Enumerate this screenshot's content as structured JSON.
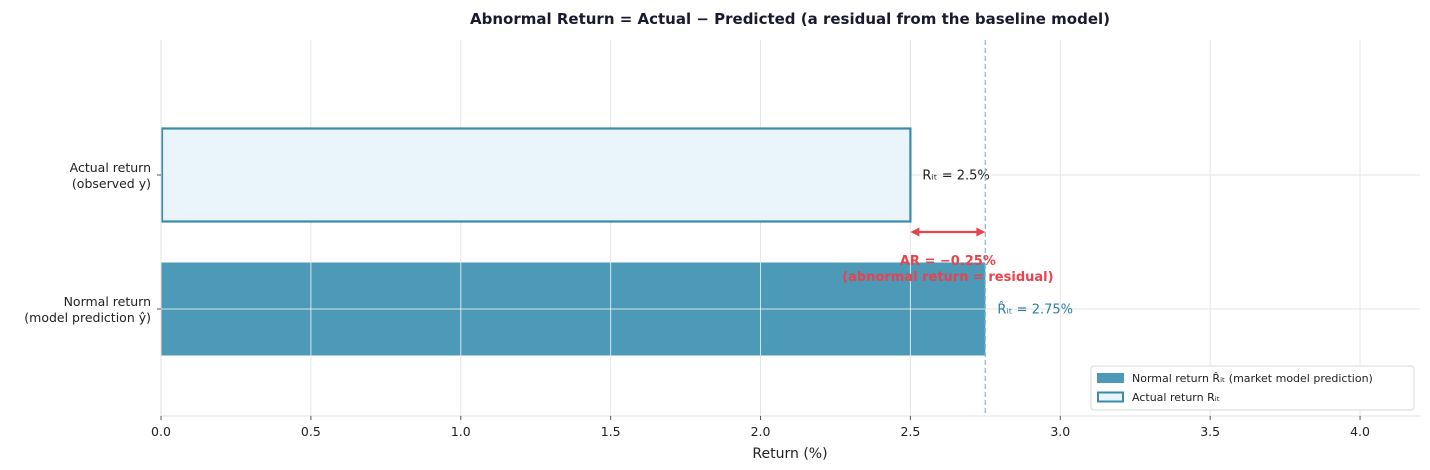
{
  "chart_data": {
    "type": "bar",
    "orientation": "horizontal",
    "title": "Abnormal Return = Actual − Predicted  (a residual from the baseline model)",
    "xlabel": "Return (%)",
    "ylabel": "",
    "xlim": [
      0,
      4.2
    ],
    "xticks": [
      0.0,
      0.5,
      1.0,
      1.5,
      2.0,
      2.5,
      3.0,
      3.5,
      4.0
    ],
    "grid": true,
    "categories": [
      {
        "line1": "Actual return",
        "line2": "(observed y)"
      },
      {
        "line1": "Normal return",
        "line2": "(model prediction ŷ)"
      }
    ],
    "series": [
      {
        "name": "Actual return Rᵢₜ",
        "category_index": 0,
        "value": 2.5,
        "label": "Rᵢₜ = 2.5%",
        "style": "outline",
        "color": "#3a8aab",
        "fill": "#eaf4fb"
      },
      {
        "name": "Normal return R̂ᵢₜ  (market model prediction)",
        "category_index": 1,
        "value": 2.75,
        "label": "R̂ᵢₜ = 2.75%",
        "style": "filled",
        "color": "#4d99b8"
      }
    ],
    "reference_line": {
      "x": 2.75,
      "color": "#8cc0d8",
      "style": "dashed"
    },
    "annotation": {
      "from": 2.5,
      "to": 2.75,
      "line1": "AR = −0.25%",
      "line2": "(abnormal return = residual)",
      "color": "#e8434f"
    },
    "legend": {
      "placement": "bottom-right",
      "entries": [
        {
          "label": "Normal return R̂ᵢₜ  (market model prediction)",
          "swatch": "filled"
        },
        {
          "label": "Actual return Rᵢₜ",
          "swatch": "outline"
        }
      ]
    }
  }
}
